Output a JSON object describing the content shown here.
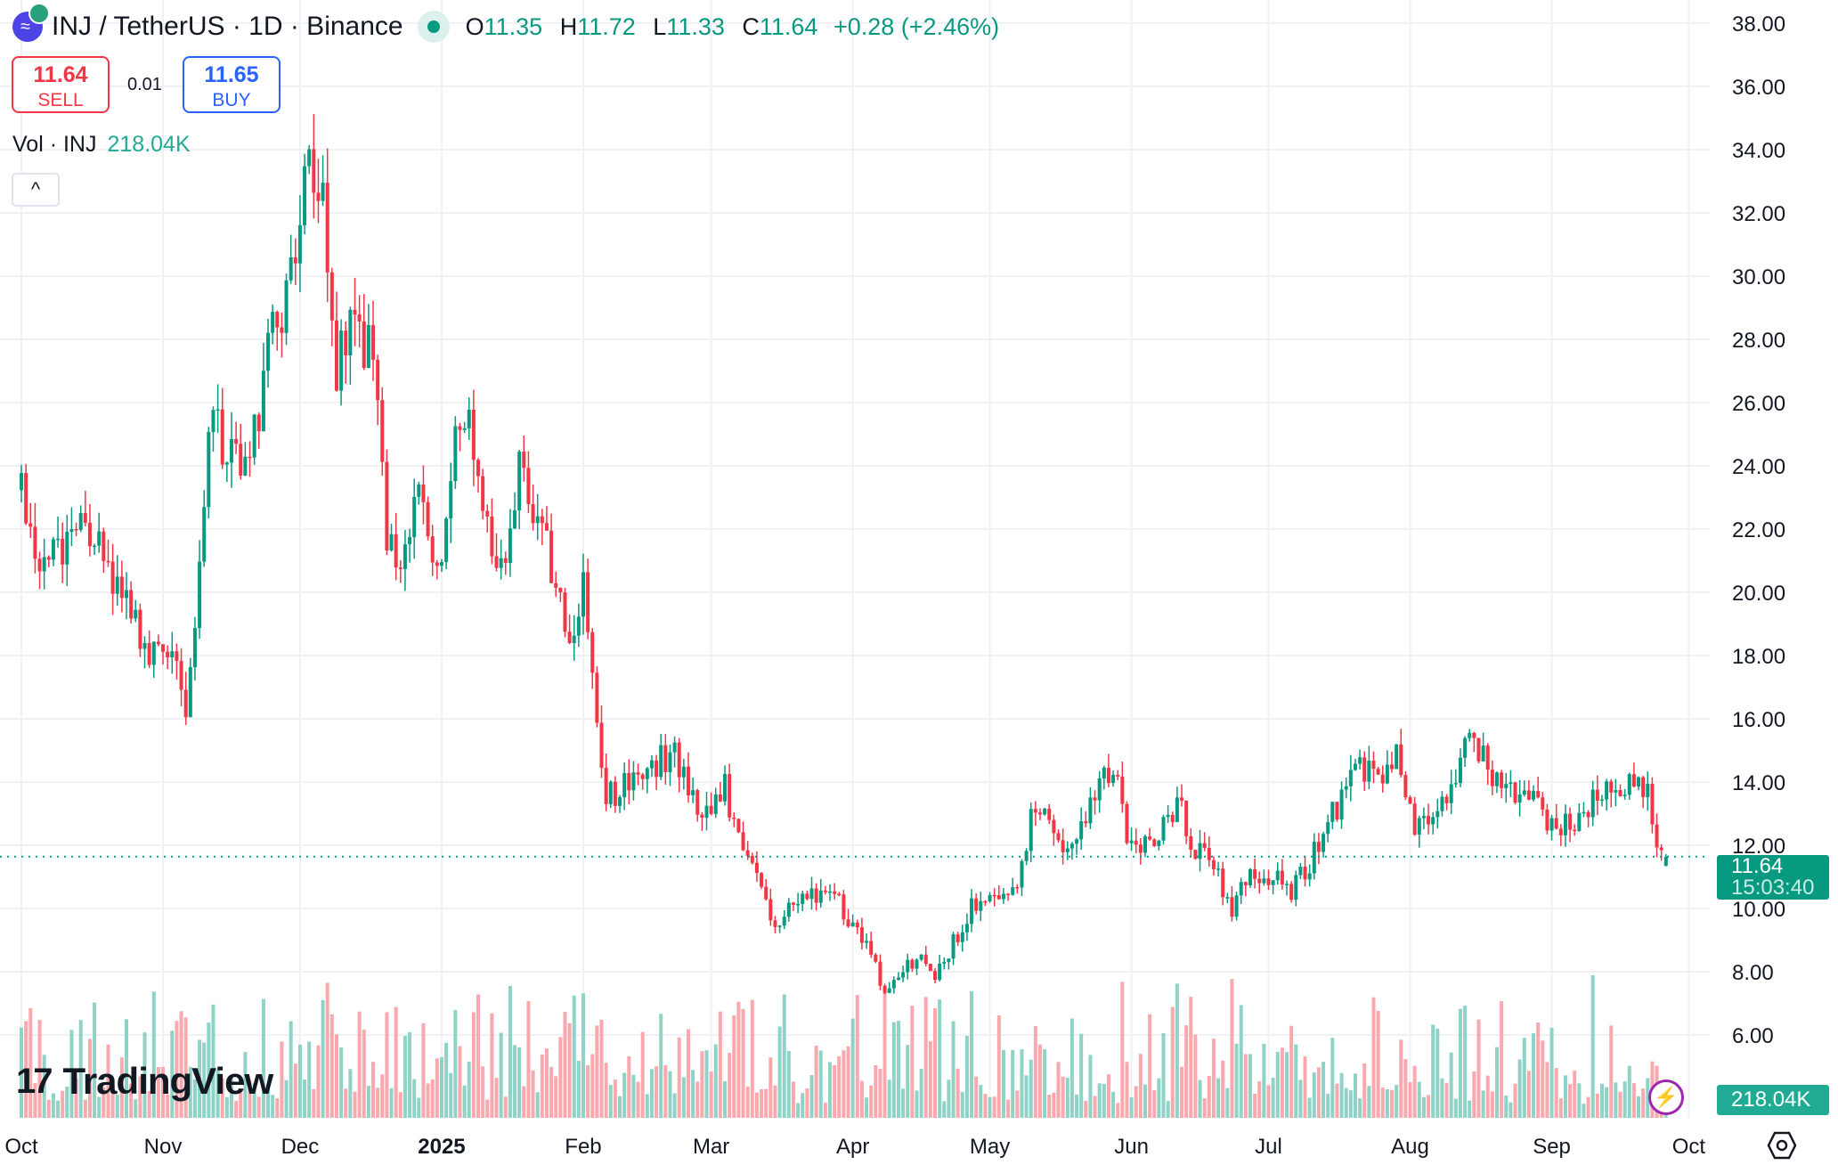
{
  "header": {
    "symbol": "INJ / TetherUS · 1D · Binance",
    "open_label": "O",
    "open": "11.35",
    "high_label": "H",
    "high": "11.72",
    "low_label": "L",
    "low": "11.33",
    "close_label": "C",
    "close": "11.64",
    "change": "+0.28 (+2.46%)"
  },
  "trade": {
    "sell_price": "11.64",
    "sell_label": "SELL",
    "spread": "0.01",
    "buy_price": "11.65",
    "buy_label": "BUY"
  },
  "volume_legend": {
    "label": "Vol · INJ",
    "value": "218.04K"
  },
  "collapse_icon": "^",
  "branding": {
    "name": "TradingView",
    "mark": "17"
  },
  "price_axis": {
    "ticks": [
      "38.00",
      "36.00",
      "34.00",
      "32.00",
      "30.00",
      "28.00",
      "26.00",
      "24.00",
      "22.00",
      "20.00",
      "18.00",
      "16.00",
      "14.00",
      "12.00",
      "10.00",
      "8.00",
      "6.00"
    ],
    "current_price": "11.64",
    "countdown": "15:03:40",
    "volume_value": "218.04K"
  },
  "time_axis": {
    "ticks": [
      {
        "label": "Oct",
        "day": 0,
        "bold": false
      },
      {
        "label": "Nov",
        "day": 31,
        "bold": false
      },
      {
        "label": "Dec",
        "day": 61,
        "bold": false
      },
      {
        "label": "2025",
        "day": 92,
        "bold": true
      },
      {
        "label": "Feb",
        "day": 123,
        "bold": false
      },
      {
        "label": "Mar",
        "day": 151,
        "bold": false
      },
      {
        "label": "Apr",
        "day": 182,
        "bold": false
      },
      {
        "label": "May",
        "day": 212,
        "bold": false
      },
      {
        "label": "Jun",
        "day": 243,
        "bold": false
      },
      {
        "label": "Jul",
        "day": 273,
        "bold": false
      },
      {
        "label": "Aug",
        "day": 304,
        "bold": false
      },
      {
        "label": "Sep",
        "day": 335,
        "bold": false
      },
      {
        "label": "Oct",
        "day": 365,
        "bold": false
      }
    ]
  },
  "colors": {
    "up": "#089981",
    "down": "#F23645",
    "up_vol": "#8fd2c6",
    "down_vol": "#f9a9ae",
    "accent": "#2962FF"
  },
  "chart_data": {
    "type": "candlestick",
    "title": "INJ / TetherUS · 1D · Binance",
    "ylim": [
      4.6,
      38.8
    ],
    "day0": "2024-10-01",
    "close_anchors": [
      [
        0,
        23
      ],
      [
        3,
        20.5
      ],
      [
        8,
        21.5
      ],
      [
        14,
        22.3
      ],
      [
        19,
        20.5
      ],
      [
        24,
        19.2
      ],
      [
        28,
        17.6
      ],
      [
        32,
        18.5
      ],
      [
        36,
        16.5
      ],
      [
        39,
        20.8
      ],
      [
        42,
        26
      ],
      [
        45,
        24
      ],
      [
        50,
        24.5
      ],
      [
        55,
        28
      ],
      [
        60,
        30.5
      ],
      [
        63,
        34
      ],
      [
        66,
        33
      ],
      [
        69,
        27
      ],
      [
        73,
        29
      ],
      [
        77,
        27
      ],
      [
        80,
        22
      ],
      [
        84,
        21
      ],
      [
        87,
        23
      ],
      [
        91,
        20.5
      ],
      [
        95,
        25
      ],
      [
        98,
        25.5
      ],
      [
        102,
        22
      ],
      [
        106,
        21
      ],
      [
        109,
        24
      ],
      [
        112,
        22
      ],
      [
        116,
        21
      ],
      [
        120,
        18
      ],
      [
        123,
        20.5
      ],
      [
        126,
        15.5
      ],
      [
        128,
        13.5
      ],
      [
        133,
        14
      ],
      [
        138,
        14.5
      ],
      [
        143,
        15
      ],
      [
        147,
        13.5
      ],
      [
        151,
        13
      ],
      [
        154,
        14
      ],
      [
        157,
        12
      ],
      [
        161,
        11
      ],
      [
        164,
        9.5
      ],
      [
        169,
        10
      ],
      [
        174,
        10.5
      ],
      [
        178,
        10.5
      ],
      [
        182,
        9.5
      ],
      [
        186,
        8.5
      ],
      [
        189,
        7.2
      ],
      [
        192,
        7.8
      ],
      [
        196,
        8.5
      ],
      [
        200,
        7.8
      ],
      [
        204,
        9
      ],
      [
        210,
        10.5
      ],
      [
        214,
        10
      ],
      [
        218,
        10.5
      ],
      [
        221,
        13
      ],
      [
        225,
        13
      ],
      [
        228,
        11.5
      ],
      [
        232,
        12.5
      ],
      [
        236,
        14
      ],
      [
        239,
        14.5
      ],
      [
        242,
        12.5
      ],
      [
        246,
        12
      ],
      [
        250,
        12.5
      ],
      [
        253,
        13.5
      ],
      [
        256,
        12
      ],
      [
        260,
        11.5
      ],
      [
        265,
        10
      ],
      [
        269,
        11
      ],
      [
        274,
        11
      ],
      [
        278,
        10.5
      ],
      [
        282,
        11.5
      ],
      [
        285,
        12.5
      ],
      [
        289,
        13.5
      ],
      [
        293,
        14.5
      ],
      [
        297,
        14
      ],
      [
        301,
        15
      ],
      [
        305,
        12.5
      ],
      [
        309,
        13
      ],
      [
        313,
        14
      ],
      [
        317,
        15.5
      ],
      [
        321,
        14.5
      ],
      [
        325,
        13.5
      ],
      [
        329,
        14
      ],
      [
        333,
        13
      ],
      [
        337,
        12.5
      ],
      [
        341,
        13
      ],
      [
        345,
        13.5
      ],
      [
        349,
        14
      ],
      [
        353,
        14
      ],
      [
        356,
        13.5
      ],
      [
        358,
        12
      ],
      [
        360,
        11.64
      ]
    ],
    "last_candle": {
      "open": 11.35,
      "high": 11.72,
      "low": 11.33,
      "close": 11.64,
      "volume": "218.04K"
    }
  }
}
